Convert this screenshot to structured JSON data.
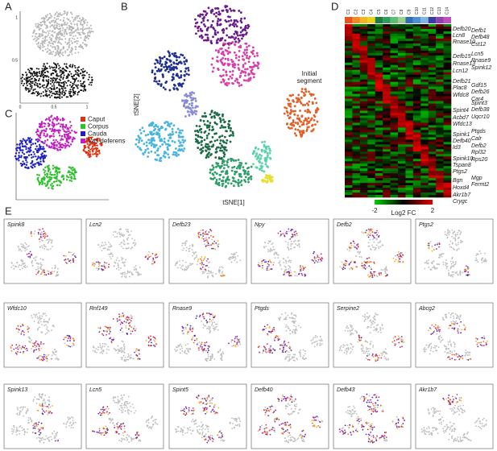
{
  "panels": {
    "a": {
      "label": "A",
      "xticks": [
        "0",
        "0.5",
        "1"
      ],
      "yticks": [
        "0.5",
        "1"
      ]
    },
    "b": {
      "label": "B",
      "x_label": "tSNE[1]",
      "y_label": "tSNE[2]",
      "annotation": [
        "Initial",
        "segment"
      ]
    },
    "c": {
      "label": "C",
      "legend": [
        "Caput",
        "Corpus",
        "Cauda",
        "Vas deferens"
      ]
    },
    "d": {
      "label": "D",
      "clusters": [
        "C1",
        "C2",
        "C3",
        "C4",
        "C5",
        "C6",
        "C7",
        "C8",
        "C9",
        "C10",
        "C11",
        "C12",
        "C13",
        "C14"
      ],
      "genes_left": [
        "Defb20",
        "Lcn8",
        "Rnase10",
        "Defb15",
        "Rnase13",
        "Lcn12",
        "Defb21",
        "Plac8",
        "Wfdc8",
        "Spint4",
        "Acbd7",
        "Wfdc13",
        "Spink1",
        "Defb40",
        "Id3",
        "Spink10",
        "Tspan8",
        "Ptgs2",
        "Bgn",
        "Hoxd4",
        "Akr1b7",
        "Crygc"
      ],
      "genes_right": [
        "Defb1",
        "Defb48",
        "Cst12",
        "Lcn5",
        "Rnase9",
        "Spink12",
        "Gdf15",
        "Defb26",
        "Car4",
        "Spint3",
        "Defb38",
        "Uqcr10",
        "Ptgds",
        "Calr",
        "Defb2",
        "Rpl32",
        "Rps20",
        "Mgp",
        "Fermt2"
      ],
      "colorbar": {
        "min_label": "-2",
        "max_label": "2",
        "title": "Log2 FC"
      }
    },
    "e": {
      "label": "E",
      "genes": [
        "Spink8",
        "Lcn2",
        "Defb23",
        "Npy",
        "Defb2",
        "Ptgs2",
        "Wfdc10",
        "Rnf149",
        "Rnase9",
        "Ptgds",
        "Serpine2",
        "Abcg2",
        "Spink13",
        "Lcn5",
        "Spint5",
        "Defb40",
        "Defb43",
        "Akr1b7"
      ]
    }
  }
}
